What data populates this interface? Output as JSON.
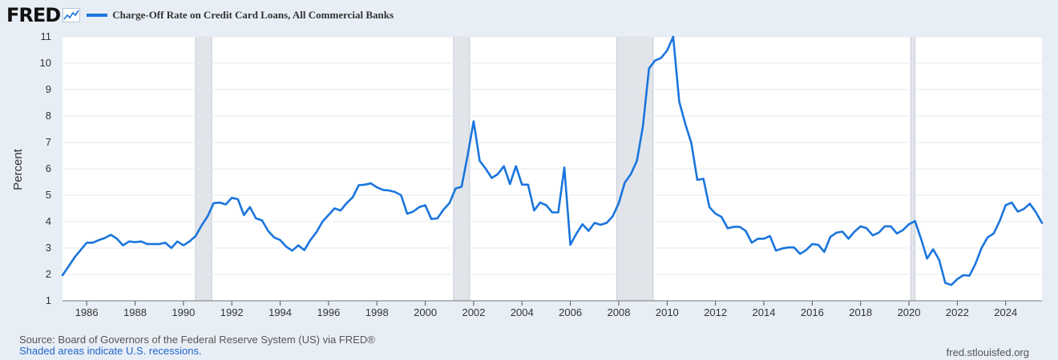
{
  "header": {
    "logo": "FRED",
    "legend_label": "Charge-Off Rate on Credit Card Loans, All Commercial Banks"
  },
  "footer": {
    "source": "Source: Board of Governors of the Federal Reserve System (US) via FRED®",
    "note": "Shaded areas indicate U.S. recessions.",
    "site": "fred.stlouisfed.org"
  },
  "colors": {
    "line": "#1a75dd",
    "recession": "#e1e5ea",
    "background": "#e8eef5",
    "plot": "#ffffff"
  },
  "icons": {
    "logo": "chart-line-icon"
  },
  "chart_data": {
    "type": "line",
    "ylabel": "Percent",
    "xlabel": "",
    "ylim": [
      1,
      11
    ],
    "xlim": [
      1985.0,
      2025.5
    ],
    "grid": true,
    "legend": "top-left",
    "yticks": [
      "1",
      "2",
      "3",
      "4",
      "5",
      "6",
      "7",
      "8",
      "9",
      "10",
      "11"
    ],
    "xticks": [
      "1986",
      "1988",
      "1990",
      "1992",
      "1994",
      "1996",
      "1998",
      "2000",
      "2002",
      "2004",
      "2006",
      "2008",
      "2010",
      "2012",
      "2014",
      "2016",
      "2018",
      "2020",
      "2022",
      "2024"
    ],
    "recessions": [
      [
        1990.5,
        1991.17
      ],
      [
        2001.17,
        2001.83
      ],
      [
        2007.92,
        2009.42
      ],
      [
        2020.08,
        2020.25
      ]
    ],
    "series": [
      {
        "name": "Charge-Off Rate on Credit Card Loans, All Commercial Banks",
        "x": [
          1985.0,
          1985.25,
          1985.5,
          1985.75,
          1986.0,
          1986.25,
          1986.5,
          1986.75,
          1987.0,
          1987.25,
          1987.5,
          1987.75,
          1988.0,
          1988.25,
          1988.5,
          1988.75,
          1989.0,
          1989.25,
          1989.5,
          1989.75,
          1990.0,
          1990.25,
          1990.5,
          1990.75,
          1991.0,
          1991.25,
          1991.5,
          1991.75,
          1992.0,
          1992.25,
          1992.5,
          1992.75,
          1993.0,
          1993.25,
          1993.5,
          1993.75,
          1994.0,
          1994.25,
          1994.5,
          1994.75,
          1995.0,
          1995.25,
          1995.5,
          1995.75,
          1996.0,
          1996.25,
          1996.5,
          1996.75,
          1997.0,
          1997.25,
          1997.5,
          1997.75,
          1998.0,
          1998.25,
          1998.5,
          1998.75,
          1999.0,
          1999.25,
          1999.5,
          1999.75,
          2000.0,
          2000.25,
          2000.5,
          2000.75,
          2001.0,
          2001.25,
          2001.5,
          2001.75,
          2002.0,
          2002.25,
          2002.5,
          2002.75,
          2003.0,
          2003.25,
          2003.5,
          2003.75,
          2004.0,
          2004.25,
          2004.5,
          2004.75,
          2005.0,
          2005.25,
          2005.5,
          2005.75,
          2006.0,
          2006.25,
          2006.5,
          2006.75,
          2007.0,
          2007.25,
          2007.5,
          2007.75,
          2008.0,
          2008.25,
          2008.5,
          2008.75,
          2009.0,
          2009.25,
          2009.5,
          2009.75,
          2010.0,
          2010.25,
          2010.5,
          2010.75,
          2011.0,
          2011.25,
          2011.5,
          2011.75,
          2012.0,
          2012.25,
          2012.5,
          2012.75,
          2013.0,
          2013.25,
          2013.5,
          2013.75,
          2014.0,
          2014.25,
          2014.5,
          2014.75,
          2015.0,
          2015.25,
          2015.5,
          2015.75,
          2016.0,
          2016.25,
          2016.5,
          2016.75,
          2017.0,
          2017.25,
          2017.5,
          2017.75,
          2018.0,
          2018.25,
          2018.5,
          2018.75,
          2019.0,
          2019.25,
          2019.5,
          2019.75,
          2020.0,
          2020.25,
          2020.5,
          2020.75,
          2021.0,
          2021.25,
          2021.5,
          2021.75,
          2022.0,
          2022.25,
          2022.5,
          2022.75,
          2023.0,
          2023.25,
          2023.5,
          2023.75,
          2024.0,
          2024.25,
          2024.5,
          2024.75,
          2025.0,
          2025.25,
          2025.5
        ],
        "values": [
          1.97,
          2.3,
          2.65,
          2.92,
          3.2,
          3.2,
          3.3,
          3.38,
          3.5,
          3.35,
          3.1,
          3.25,
          3.22,
          3.25,
          3.15,
          3.15,
          3.15,
          3.2,
          3.0,
          3.25,
          3.1,
          3.25,
          3.45,
          3.85,
          4.2,
          4.7,
          4.72,
          4.65,
          4.9,
          4.85,
          4.25,
          4.55,
          4.12,
          4.05,
          3.65,
          3.4,
          3.3,
          3.05,
          2.9,
          3.1,
          2.92,
          3.3,
          3.6,
          4.0,
          4.25,
          4.5,
          4.42,
          4.7,
          4.92,
          5.38,
          5.4,
          5.45,
          5.3,
          5.2,
          5.18,
          5.12,
          5.0,
          4.3,
          4.38,
          4.55,
          4.62,
          4.1,
          4.12,
          4.45,
          4.7,
          5.25,
          5.32,
          6.5,
          7.8,
          6.3,
          6.0,
          5.65,
          5.8,
          6.1,
          5.42,
          6.1,
          5.4,
          5.4,
          4.42,
          4.72,
          4.62,
          4.35,
          4.35,
          6.05,
          3.12,
          3.55,
          3.9,
          3.65,
          3.95,
          3.88,
          3.95,
          4.2,
          4.7,
          5.48,
          5.8,
          6.3,
          7.6,
          9.8,
          10.1,
          10.2,
          10.48,
          11.0,
          8.55,
          7.7,
          6.98,
          5.58,
          5.62,
          4.55,
          4.3,
          4.18,
          3.75,
          3.8,
          3.8,
          3.65,
          3.2,
          3.35,
          3.35,
          3.45,
          2.9,
          2.98,
          3.02,
          3.02,
          2.78,
          2.92,
          3.15,
          3.12,
          2.85,
          3.42,
          3.58,
          3.62,
          3.35,
          3.62,
          3.82,
          3.75,
          3.48,
          3.58,
          3.82,
          3.82,
          3.55,
          3.68,
          3.9,
          4.02,
          3.35,
          2.6,
          2.95,
          2.55,
          1.68,
          1.6,
          1.82,
          1.97,
          1.95,
          2.4,
          3.0,
          3.4,
          3.55,
          4.02,
          4.62,
          4.72,
          4.38,
          4.48,
          4.68,
          4.35,
          3.95
        ]
      }
    ]
  }
}
